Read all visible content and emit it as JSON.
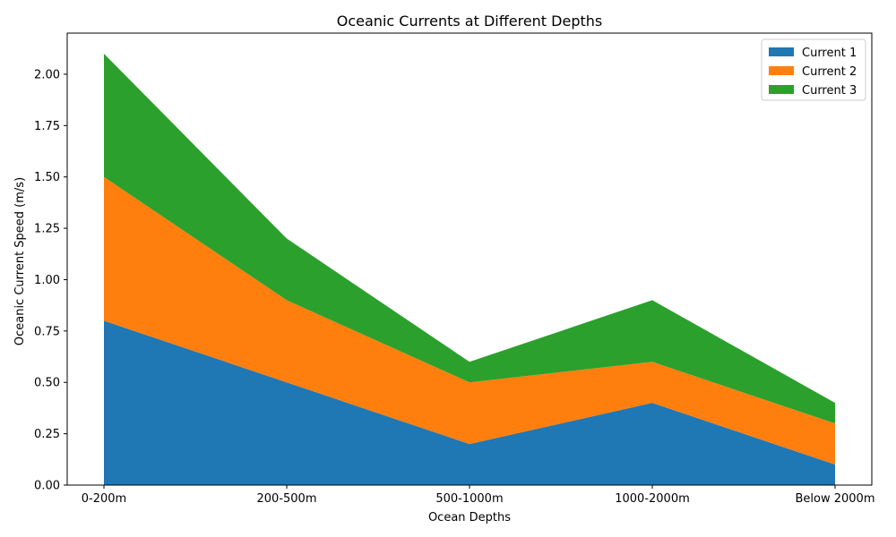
{
  "chart_data": {
    "type": "area",
    "stacked": true,
    "title": "Oceanic Currents at Different Depths",
    "xlabel": "Ocean Depths",
    "ylabel": "Oceanic Current Speed (m/s)",
    "categories": [
      "0-200m",
      "200-500m",
      "500-1000m",
      "1000-2000m",
      "Below 2000m"
    ],
    "ylim": [
      0,
      2.2
    ],
    "yticks": [
      "0.00",
      "0.25",
      "0.50",
      "0.75",
      "1.00",
      "1.25",
      "1.50",
      "1.75",
      "2.00"
    ],
    "ytick_values": [
      0,
      0.25,
      0.5,
      0.75,
      1.0,
      1.25,
      1.5,
      1.75,
      2.0
    ],
    "legend_position": "top-right",
    "series": [
      {
        "name": "Current 1",
        "color": "#1f77b4",
        "values": [
          0.8,
          0.5,
          0.2,
          0.4,
          0.1
        ]
      },
      {
        "name": "Current 2",
        "color": "#ff7f0e",
        "values": [
          0.7,
          0.4,
          0.3,
          0.2,
          0.2
        ]
      },
      {
        "name": "Current 3",
        "color": "#2ca02c",
        "values": [
          0.6,
          0.3,
          0.1,
          0.3,
          0.1
        ]
      }
    ]
  }
}
